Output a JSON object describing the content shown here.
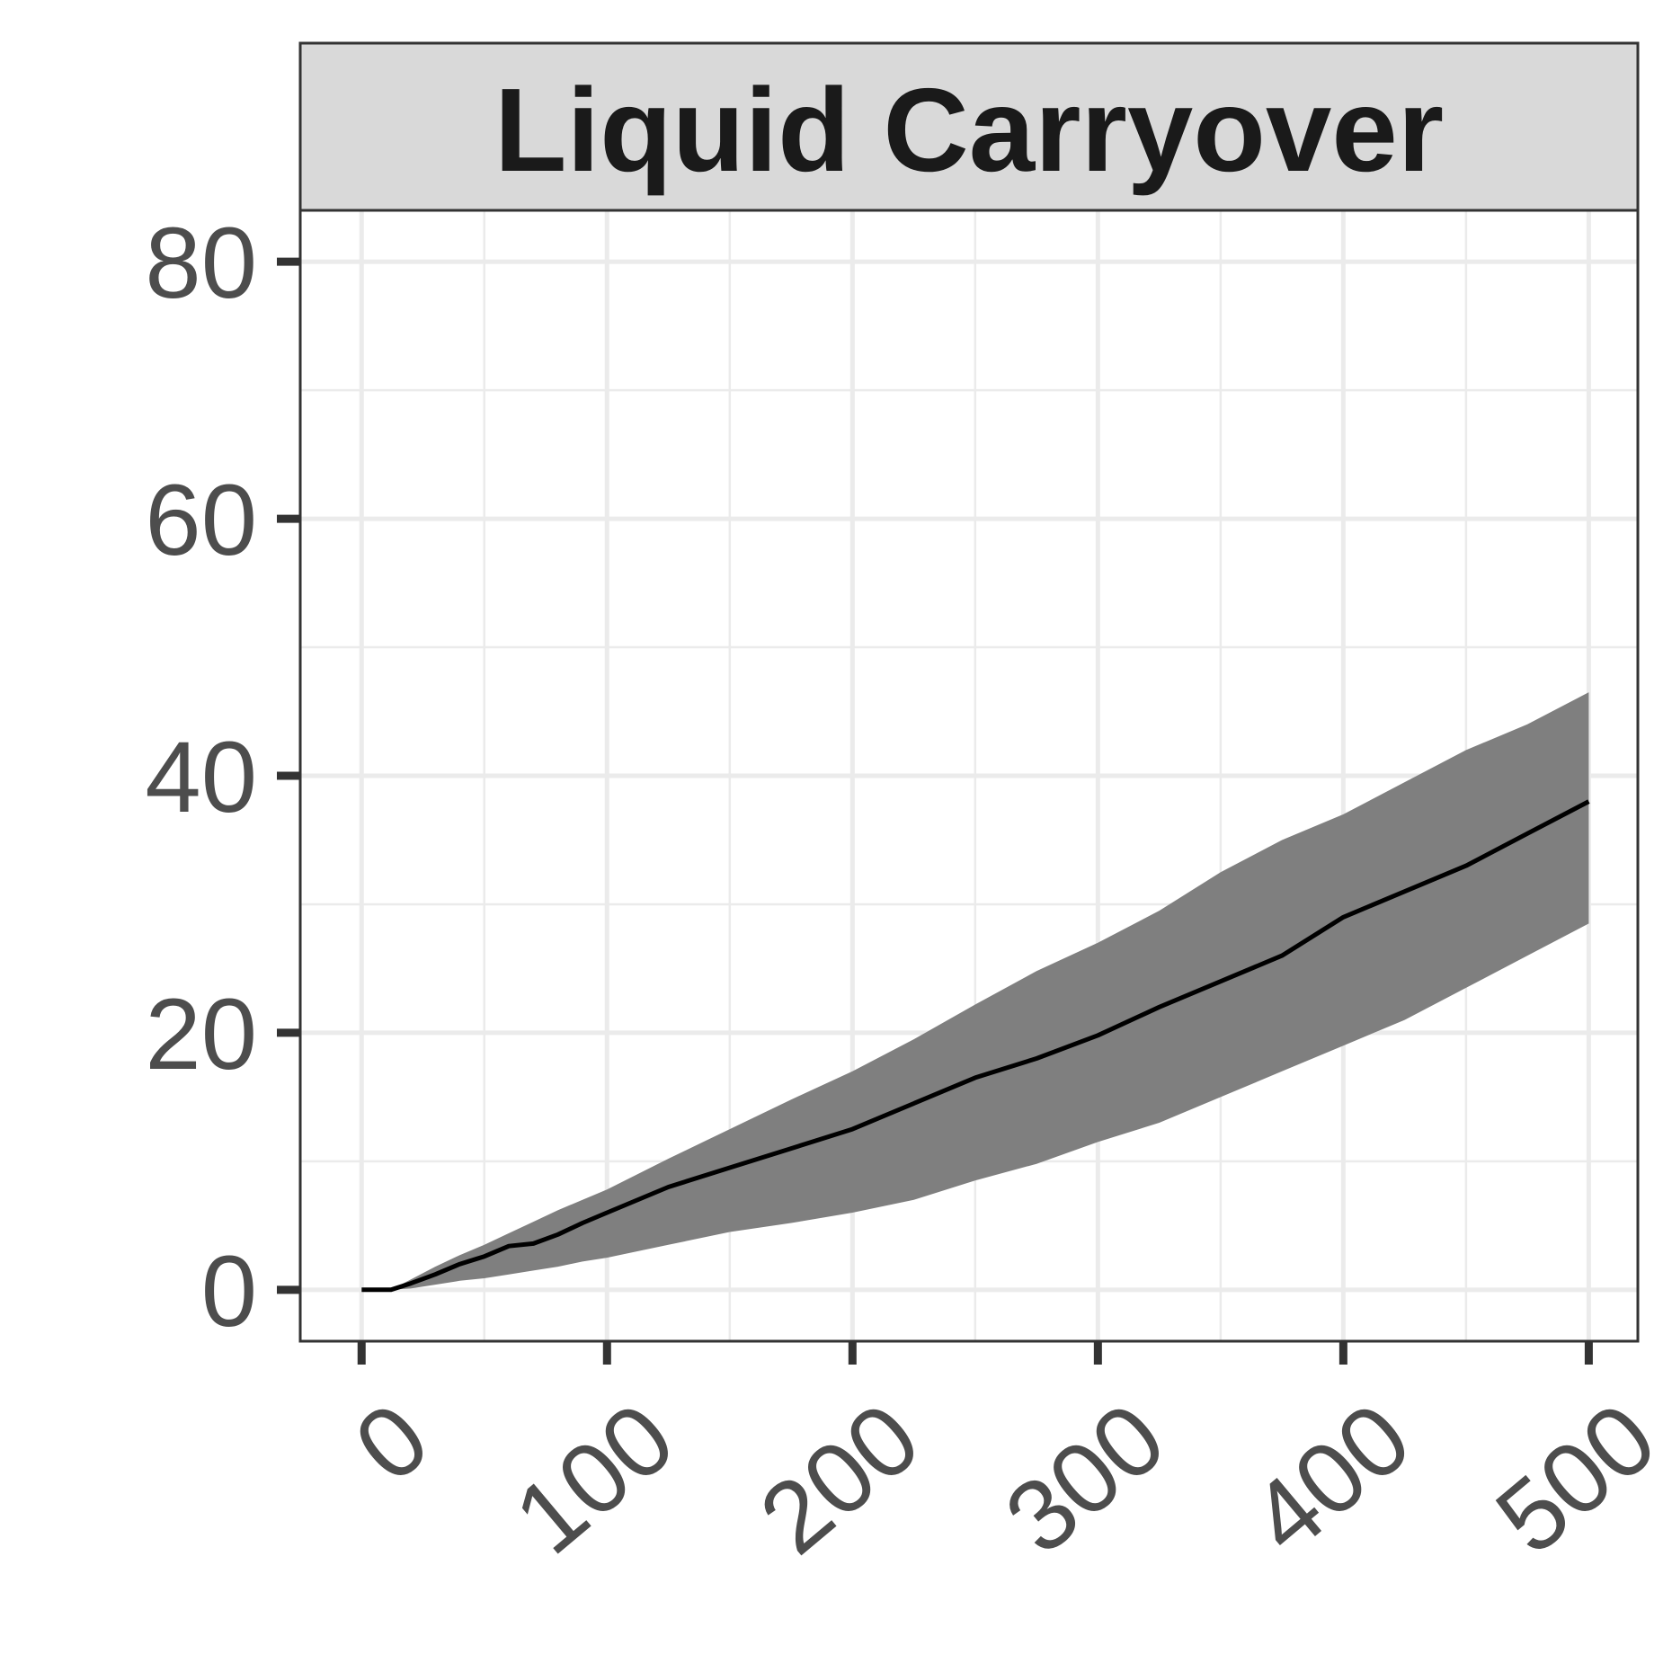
{
  "chart_data": {
    "type": "area",
    "title": "Liquid Carryover",
    "xlabel": "",
    "ylabel": "",
    "xlim": [
      -25,
      520
    ],
    "ylim": [
      -4,
      84
    ],
    "x_ticks": [
      0,
      100,
      200,
      300,
      400,
      500
    ],
    "y_ticks": [
      0,
      20,
      40,
      60,
      80
    ],
    "x_tick_labels": [
      "0",
      "100",
      "200",
      "300",
      "400",
      "500"
    ],
    "y_tick_labels": [
      "0",
      "20",
      "40",
      "60",
      "80"
    ],
    "grid": true,
    "legend": "none",
    "series": [
      {
        "role": "mean",
        "x": [
          0,
          12,
          20,
          30,
          40,
          50,
          60,
          70,
          80,
          90,
          100,
          125,
          150,
          175,
          200,
          225,
          250,
          275,
          300,
          325,
          350,
          375,
          400,
          425,
          450,
          475,
          500
        ],
        "y": [
          0,
          0,
          0.5,
          1.2,
          2.0,
          2.6,
          3.4,
          3.6,
          4.3,
          5.2,
          6.0,
          8.0,
          9.5,
          11.0,
          12.5,
          14.5,
          16.5,
          18.0,
          19.8,
          22.0,
          24.0,
          26.0,
          29.0,
          31.0,
          33.0,
          35.5,
          38.0
        ]
      },
      {
        "role": "band",
        "x": [
          0,
          12,
          20,
          30,
          40,
          50,
          60,
          70,
          80,
          90,
          100,
          125,
          150,
          175,
          200,
          225,
          250,
          275,
          300,
          325,
          350,
          375,
          400,
          425,
          450,
          475,
          500
        ],
        "lower": [
          0,
          0,
          0.1,
          0.4,
          0.7,
          0.9,
          1.2,
          1.5,
          1.8,
          2.2,
          2.5,
          3.5,
          4.5,
          5.2,
          6.0,
          7.0,
          8.5,
          9.8,
          11.5,
          13.0,
          15.0,
          17.0,
          19.0,
          21.0,
          23.5,
          26.0,
          28.5
        ],
        "upper": [
          0,
          0,
          0.8,
          1.8,
          2.7,
          3.5,
          4.4,
          5.3,
          6.2,
          7.0,
          7.8,
          10.2,
          12.5,
          14.8,
          17.0,
          19.5,
          22.2,
          24.8,
          27.0,
          29.5,
          32.5,
          35.0,
          37.0,
          39.5,
          42.0,
          44.0,
          46.5
        ]
      }
    ],
    "colors": {
      "band": "#7f7f7f",
      "line": "#000000",
      "strip_fill": "#d9d9d9",
      "grid": "#ebebeb",
      "border": "#333333",
      "tick_text": "#4d4d4d"
    }
  }
}
